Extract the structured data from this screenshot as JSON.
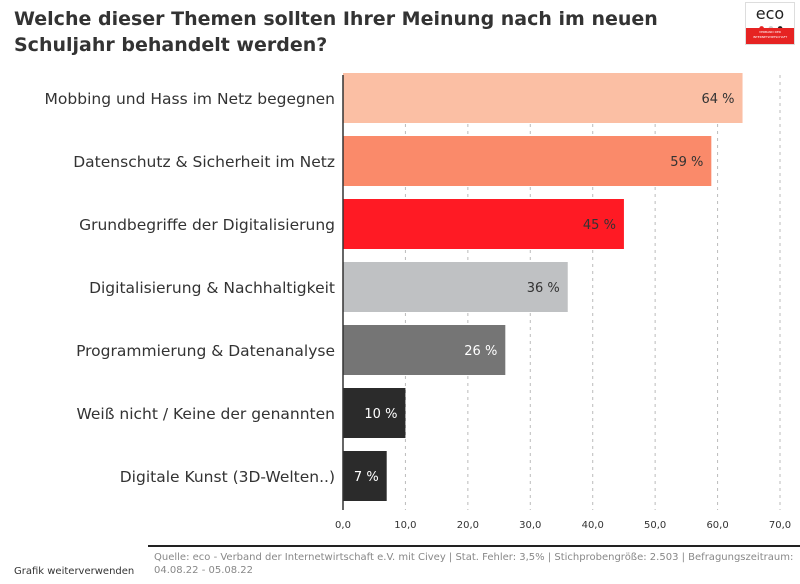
{
  "chart_data": {
    "type": "bar",
    "orientation": "horizontal",
    "title": "Welche dieser Themen sollten Ihrer Meinung nach im neuen Schuljahr behandelt werden?",
    "categories": [
      "Mobbing und Hass im Netz begegnen",
      "Datenschutz & Sicherheit im Netz",
      "Grundbegriffe der Digitalisierung",
      "Digitalisierung & Nachhaltigkeit",
      "Programmierung & Datenanalyse",
      "Weiß nicht / Keine der genannten",
      "Digitale Kunst (3D-Welten..)"
    ],
    "values": [
      64,
      59,
      45,
      36,
      26,
      10,
      7
    ],
    "data_labels": [
      "64 %",
      "59 %",
      "45 %",
      "36 %",
      "26 %",
      "10 %",
      "7 %"
    ],
    "colors": [
      "#fbbfa4",
      "#fa8a6a",
      "#ff1a24",
      "#bfc1c3",
      "#757575",
      "#2b2b2b",
      "#2b2b2b"
    ],
    "label_colors": [
      "#333333",
      "#333333",
      "#333333",
      "#333333",
      "#ffffff",
      "#ffffff",
      "#ffffff"
    ],
    "xlim": [
      0,
      70
    ],
    "xticks": [
      "0,0",
      "10,0",
      "20,0",
      "30,0",
      "40,0",
      "50,0",
      "60,0",
      "70,0"
    ],
    "grid": true
  },
  "logo": {
    "text": "eco",
    "subtext": "VERBAND DER INTERNETWIRTSCHAFT"
  },
  "footer": {
    "source": "Quelle: eco - Verband der Internetwirtschaft e.V. mit Civey | Stat. Fehler: 3,5% | Stichprobengröße: 2.503 | Befragungszeitraum: 04.08.22 - 05.08.22",
    "reuse_link": "Grafik weiterverwenden"
  }
}
